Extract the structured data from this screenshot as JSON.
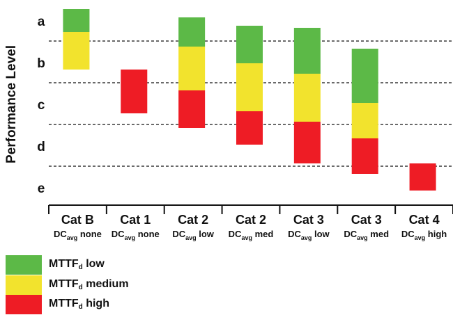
{
  "chart_data": {
    "type": "bar",
    "subtype": "floating-range",
    "ylabel": "Performance Level",
    "y_levels": [
      "a",
      "b",
      "c",
      "d",
      "e"
    ],
    "categories": [
      {
        "main": "Cat B",
        "dc_base": "DC",
        "dc_sub": "avg",
        "dc_level": " none"
      },
      {
        "main": "Cat 1",
        "dc_base": "DC",
        "dc_sub": "avg",
        "dc_level": " none"
      },
      {
        "main": "Cat 2",
        "dc_base": "DC",
        "dc_sub": "avg",
        "dc_level": " low"
      },
      {
        "main": "Cat 2",
        "dc_base": "DC",
        "dc_sub": "avg",
        "dc_level": " med"
      },
      {
        "main": "Cat 3",
        "dc_base": "DC",
        "dc_sub": "avg",
        "dc_level": " low"
      },
      {
        "main": "Cat 3",
        "dc_base": "DC",
        "dc_sub": "avg",
        "dc_level": " med"
      },
      {
        "main": "Cat 4",
        "dc_base": "DC",
        "dc_sub": "avg",
        "dc_level": " high"
      }
    ],
    "value_scale_note": "0 = top of level a, 5 = bottom of level e",
    "ylim": [
      0,
      5
    ],
    "boundaries": [
      1,
      2,
      3,
      4
    ],
    "series": [
      {
        "name_base": "MTTF",
        "name_sub": "d",
        "name_level": " low",
        "color": "#5cb947",
        "ranges": [
          [
            0.25,
            0.8
          ],
          null,
          [
            0.45,
            1.15
          ],
          [
            0.65,
            1.55
          ],
          [
            0.7,
            1.8
          ],
          [
            1.2,
            2.5
          ],
          null
        ]
      },
      {
        "name_base": "MTTF",
        "name_sub": "d",
        "name_level": " medium",
        "color": "#f2e32d",
        "ranges": [
          [
            0.8,
            1.7
          ],
          null,
          [
            1.15,
            2.2
          ],
          [
            1.55,
            2.7
          ],
          [
            1.8,
            2.95
          ],
          [
            2.5,
            3.35
          ],
          null
        ]
      },
      {
        "name_base": "MTTF",
        "name_sub": "d",
        "name_level": " high",
        "color": "#ee1c25",
        "ranges": [
          null,
          [
            1.7,
            2.75
          ],
          [
            2.2,
            3.1
          ],
          [
            2.7,
            3.5
          ],
          [
            2.95,
            3.95
          ],
          [
            3.35,
            4.2
          ],
          [
            3.95,
            4.6
          ]
        ]
      }
    ]
  }
}
